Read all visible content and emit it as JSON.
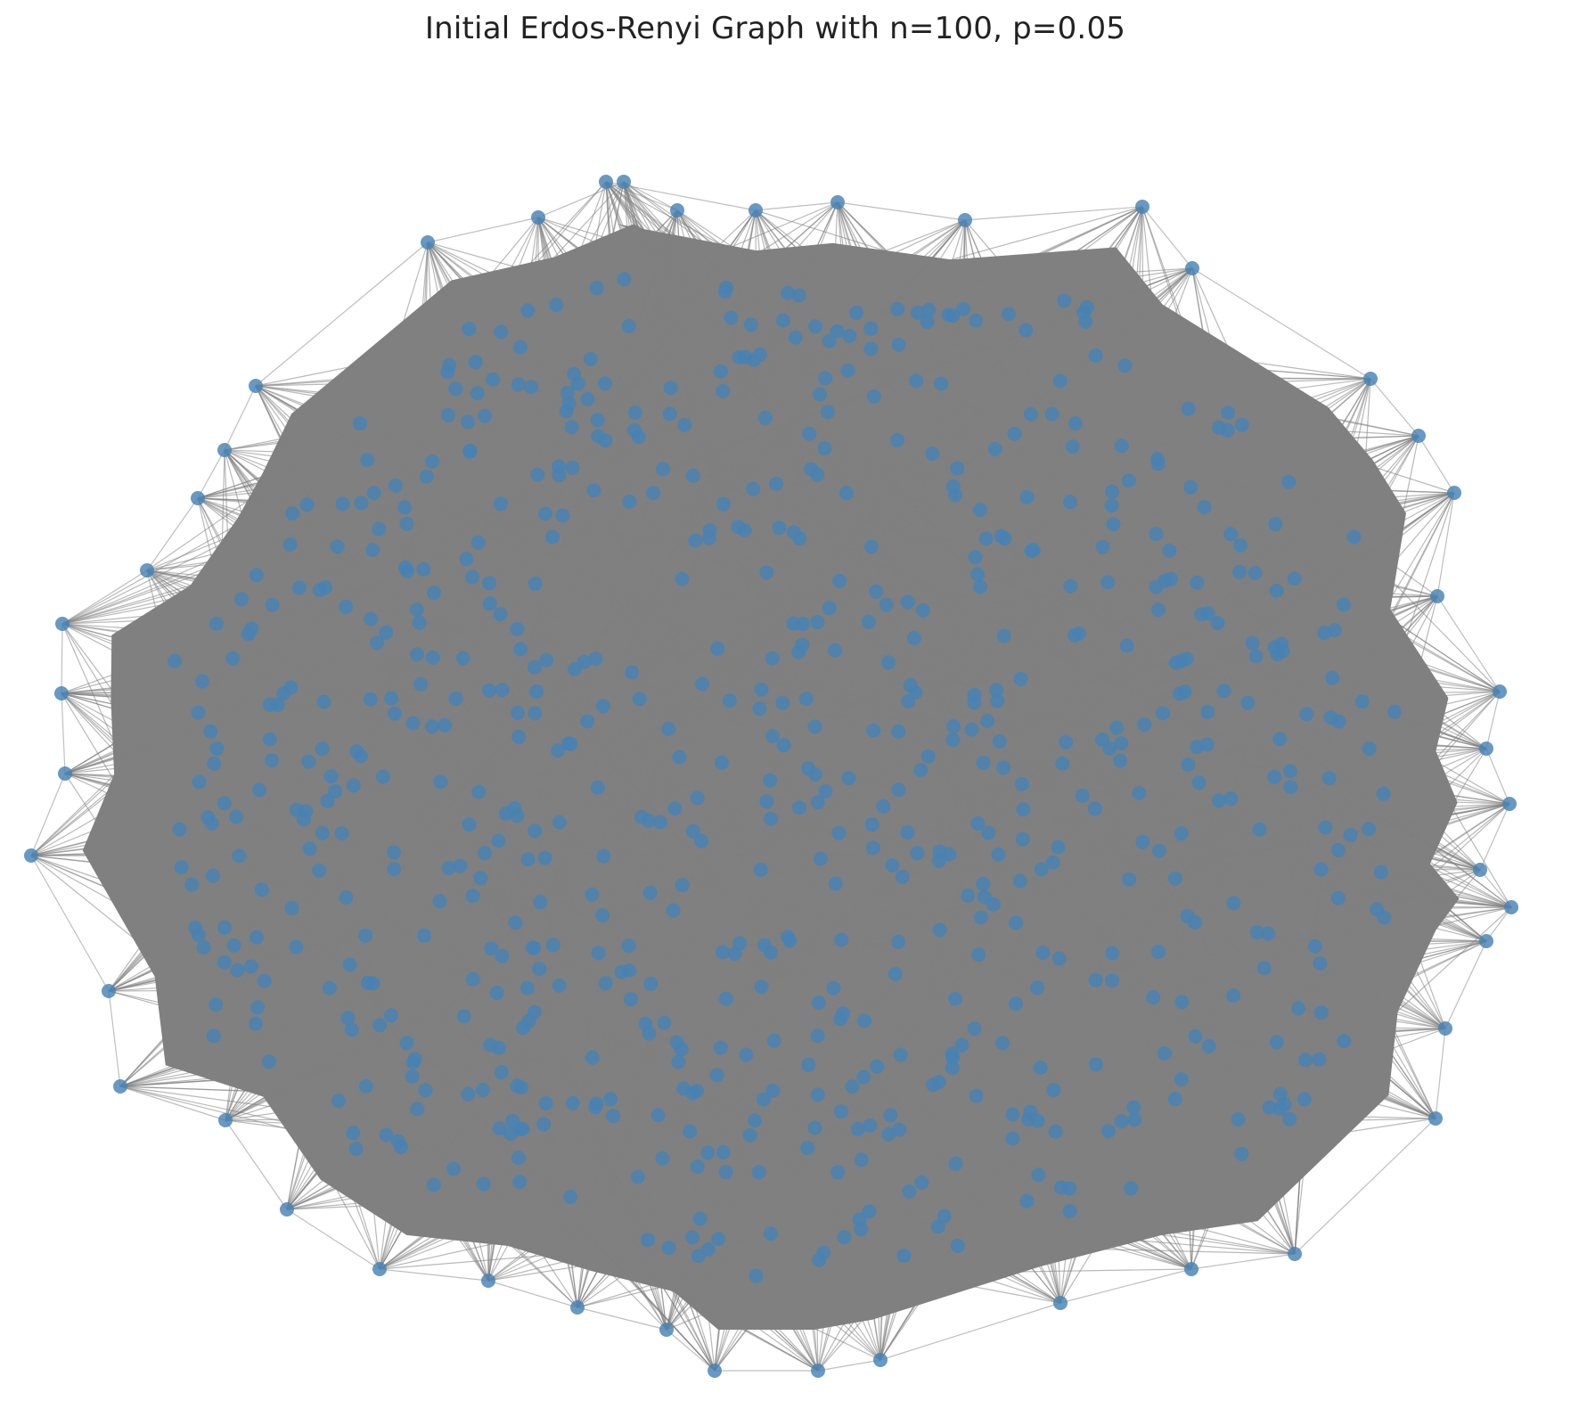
{
  "title": "Initial Erdos-Renyi Graph with n=100, p=0.05",
  "style": {
    "node_color": "#4682b4",
    "edge_color": "#808080",
    "background": "#ffffff"
  },
  "graph": {
    "layout": "spring",
    "boundary_nodes": 44,
    "interior_nodes": 720
  }
}
